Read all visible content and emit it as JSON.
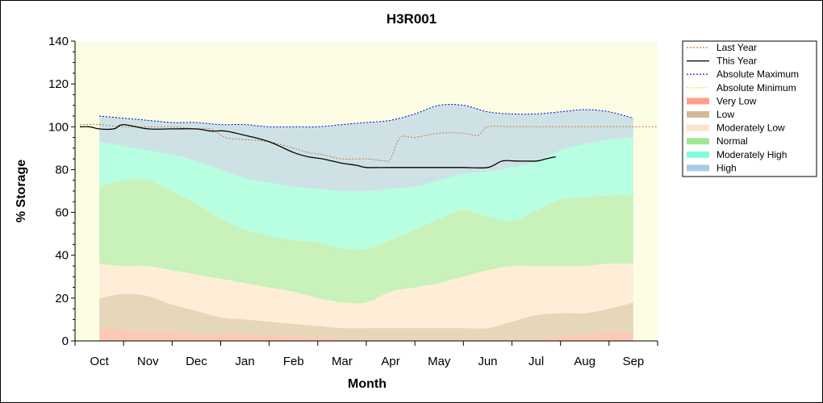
{
  "chart_data": {
    "type": "area",
    "title": "H3R001",
    "xlabel": "Month",
    "ylabel": "% Storage",
    "ylim": [
      0,
      140
    ],
    "yticks": [
      0,
      20,
      40,
      60,
      80,
      100,
      120,
      140
    ],
    "categories": [
      "Oct",
      "Nov",
      "Dec",
      "Jan",
      "Feb",
      "Mar",
      "Apr",
      "May",
      "Jun",
      "Jul",
      "Aug",
      "Sep"
    ],
    "x_domain": [
      -0.5,
      11.5
    ],
    "grid": false,
    "legend_position": "right",
    "legend": [
      {
        "label": "Last Year",
        "key": "last_year",
        "style": "dash",
        "color": "#c87533"
      },
      {
        "label": "This Year",
        "key": "this_year",
        "style": "line",
        "color": "#000000"
      },
      {
        "label": "Absolute Maximum",
        "key": "abs_max",
        "style": "dash",
        "color": "#0000cc"
      },
      {
        "label": "Absolute Minimum",
        "key": "abs_min",
        "style": "dash",
        "color": "#e6e600"
      },
      {
        "label": "Very Low",
        "key": "very_low",
        "style": "band",
        "color": "#ff9f8a"
      },
      {
        "label": "Low",
        "key": "low",
        "style": "band",
        "color": "#d4b896"
      },
      {
        "label": "Moderately Low",
        "key": "mod_low",
        "style": "band",
        "color": "#ffe2cc"
      },
      {
        "label": "Normal",
        "key": "normal",
        "style": "band",
        "color": "#9ee895"
      },
      {
        "label": "Moderately High",
        "key": "mod_high",
        "style": "band",
        "color": "#80ffdc"
      },
      {
        "label": "High",
        "key": "high",
        "style": "band",
        "color": "#a8cce6"
      }
    ],
    "bands_x": [
      0,
      0.5,
      1,
      1.5,
      2,
      2.5,
      3,
      3.5,
      4,
      4.5,
      5,
      5.5,
      6,
      6.5,
      7,
      7.5,
      8,
      8.5,
      9,
      9.5,
      10,
      10.5,
      11
    ],
    "bands": {
      "very_low": [
        6,
        5,
        4,
        4,
        3,
        3,
        3,
        2.5,
        2,
        1.5,
        1,
        1,
        1,
        1,
        1,
        1,
        1,
        1,
        1,
        2,
        3,
        4,
        4
      ],
      "low": [
        20,
        22,
        21,
        17,
        14,
        11,
        10,
        9,
        8,
        7,
        6,
        6,
        6,
        6,
        6,
        6,
        6,
        9,
        12,
        13,
        13,
        15,
        18
      ],
      "mod_low": [
        36,
        35,
        35,
        33,
        31,
        29,
        27,
        25,
        23,
        20,
        18,
        18,
        23,
        25,
        27,
        30,
        33,
        35,
        35,
        35,
        35,
        36,
        36
      ],
      "normal": [
        72,
        75,
        75,
        70,
        64,
        57,
        52,
        49,
        47,
        46,
        43,
        43,
        47,
        52,
        57,
        61,
        58,
        56,
        61,
        66,
        67,
        68,
        68
      ],
      "mod_high": [
        93,
        91,
        89,
        87,
        84,
        80,
        76,
        74,
        72,
        71,
        70,
        70,
        71,
        72,
        75,
        78,
        79,
        81,
        84,
        89,
        92,
        94,
        95
      ],
      "high": [
        105,
        104,
        103,
        102,
        102,
        101,
        101,
        100,
        100,
        100,
        101,
        102,
        103,
        106,
        110,
        110,
        107,
        106,
        106,
        107,
        108,
        107,
        104
      ]
    },
    "abs_max": {
      "x": [
        0,
        0.5,
        1,
        1.5,
        2,
        2.5,
        3,
        3.5,
        4,
        4.5,
        5,
        5.5,
        6,
        6.5,
        7,
        7.5,
        8,
        8.5,
        9,
        9.5,
        10,
        10.5,
        11
      ],
      "y": [
        105,
        104,
        103,
        102,
        102,
        101,
        101,
        100,
        100,
        100,
        101,
        102,
        103,
        106,
        110,
        110,
        107,
        106,
        106,
        107,
        108,
        107,
        104
      ]
    },
    "last_year": {
      "x": [
        -0.4,
        0,
        0.5,
        1,
        1.5,
        2,
        2.3,
        2.6,
        3,
        3.5,
        4,
        4.3,
        4.6,
        5,
        5.5,
        5.9,
        6,
        6.2,
        6.5,
        7,
        7.5,
        7.8,
        8,
        8.5,
        9,
        9.5,
        10,
        10.5,
        11,
        11.5
      ],
      "y": [
        101,
        101,
        100,
        100,
        100,
        99,
        99,
        95,
        94,
        93,
        90,
        88,
        87,
        85,
        85,
        84,
        85,
        95,
        95,
        97,
        97,
        96,
        100,
        100,
        100,
        100,
        100,
        100,
        100,
        100
      ]
    },
    "this_year": {
      "x": [
        -0.4,
        -0.2,
        0,
        0.3,
        0.5,
        1,
        1.5,
        2,
        2.3,
        2.6,
        3,
        3.5,
        4,
        4.3,
        4.6,
        5,
        5.3,
        5.5,
        6,
        6.5,
        7,
        7.5,
        8,
        8.3,
        8.6,
        9,
        9.2,
        9.4
      ],
      "y": [
        100,
        100,
        99,
        99,
        101,
        99,
        99,
        99,
        98,
        98,
        96,
        93,
        88,
        86,
        85,
        83,
        82,
        81,
        81,
        81,
        81,
        81,
        81,
        84,
        84,
        84,
        85,
        86
      ]
    }
  }
}
